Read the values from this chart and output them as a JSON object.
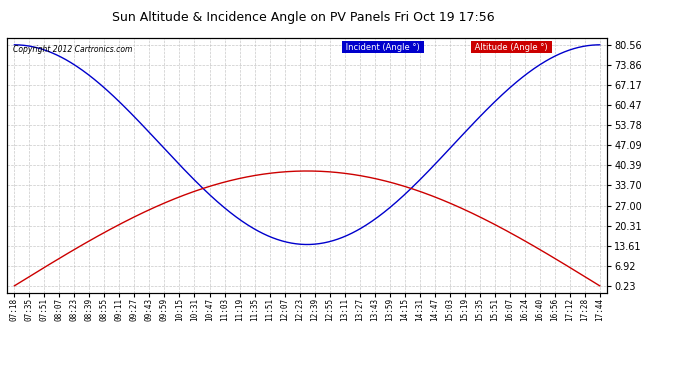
{
  "title": "Sun Altitude & Incidence Angle on PV Panels Fri Oct 19 17:56",
  "copyright": "Copyright 2012 Cartronics.com",
  "yticks": [
    0.23,
    6.92,
    13.61,
    20.31,
    27.0,
    33.7,
    40.39,
    47.09,
    53.78,
    60.47,
    67.17,
    73.86,
    80.56
  ],
  "ymin": -2,
  "ymax": 83,
  "incident_color": "#0000cc",
  "altitude_color": "#cc0000",
  "background_color": "#ffffff",
  "grid_color": "#bbbbbb",
  "legend_incident_bg": "#0000cc",
  "legend_altitude_bg": "#cc0000",
  "legend_incident_label": "Incident (Angle °)",
  "legend_altitude_label": "Altitude (Angle °)",
  "x_labels": [
    "07:18",
    "07:35",
    "07:51",
    "08:07",
    "08:23",
    "08:39",
    "08:55",
    "09:11",
    "09:27",
    "09:43",
    "09:59",
    "10:15",
    "10:31",
    "10:47",
    "11:03",
    "11:19",
    "11:35",
    "11:51",
    "12:07",
    "12:23",
    "12:39",
    "12:55",
    "13:11",
    "13:27",
    "13:43",
    "13:59",
    "14:15",
    "14:31",
    "14:47",
    "15:03",
    "15:19",
    "15:35",
    "15:51",
    "16:07",
    "16:24",
    "16:40",
    "16:56",
    "17:12",
    "17:28",
    "17:44"
  ],
  "num_points": 40,
  "alt_min": 0.23,
  "alt_max": 38.5,
  "inc_min": 14.0,
  "inc_max": 80.56,
  "inc_smooth_power": 2.0
}
